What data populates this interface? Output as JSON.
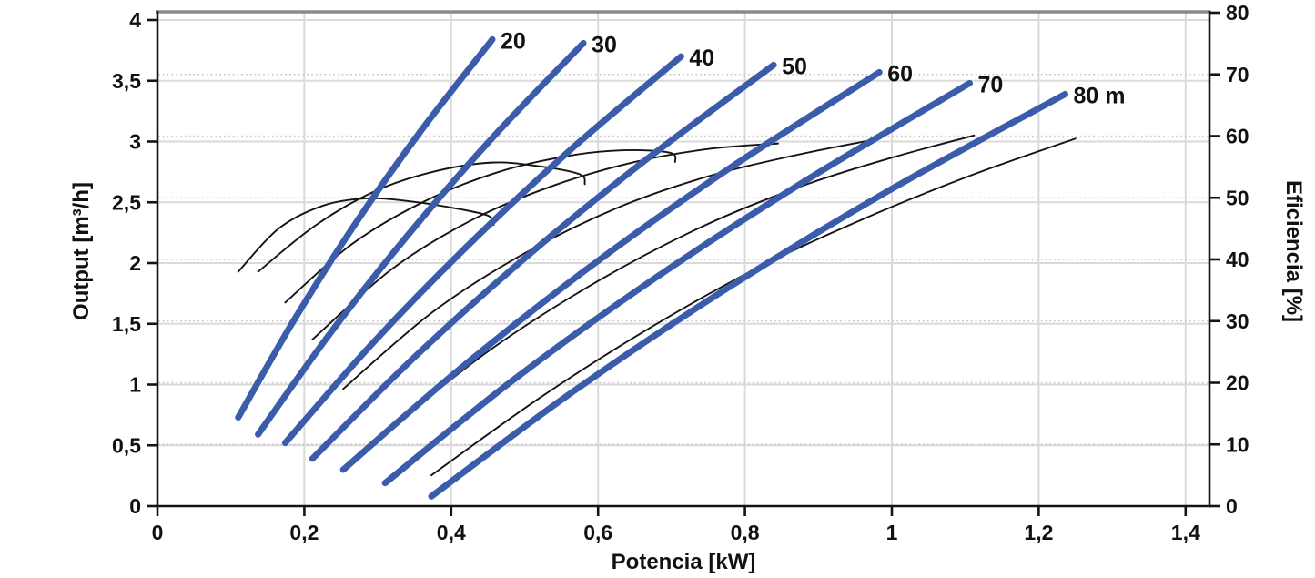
{
  "chart_data": {
    "type": "line",
    "title": "",
    "xlabel": "Potencia [kW]",
    "ylabel_left": "Output [m³/h]",
    "ylabel_right": "Eficiencia [%]",
    "x_axis": {
      "min": 0,
      "max": 1.43,
      "gridlines": true,
      "ticks": [
        {
          "v": 0,
          "label": "0"
        },
        {
          "v": 0.2,
          "label": "0,2"
        },
        {
          "v": 0.4,
          "label": "0,4"
        },
        {
          "v": 0.6,
          "label": "0,6"
        },
        {
          "v": 0.8,
          "label": "0,8"
        },
        {
          "v": 1,
          "label": "1"
        },
        {
          "v": 1.2,
          "label": "1,2"
        },
        {
          "v": 1.4,
          "label": "1,4"
        }
      ]
    },
    "y_axis_left": {
      "min": 0,
      "max": 4.07,
      "gridlines": "solid",
      "ticks": [
        {
          "v": 0,
          "label": "0"
        },
        {
          "v": 0.5,
          "label": "0,5"
        },
        {
          "v": 1,
          "label": "1"
        },
        {
          "v": 1.5,
          "label": "1,5"
        },
        {
          "v": 2,
          "label": "2"
        },
        {
          "v": 2.5,
          "label": "2,5"
        },
        {
          "v": 3,
          "label": "3"
        },
        {
          "v": 3.5,
          "label": "3,5"
        },
        {
          "v": 4,
          "label": "4"
        }
      ]
    },
    "y_axis_right": {
      "min": 0,
      "max": 80.2,
      "gridlines": "dotted",
      "ticks": [
        {
          "v": 0,
          "label": "0"
        },
        {
          "v": 10,
          "label": "10"
        },
        {
          "v": 20,
          "label": "20"
        },
        {
          "v": 30,
          "label": "30"
        },
        {
          "v": 40,
          "label": "40"
        },
        {
          "v": 50,
          "label": "50"
        },
        {
          "v": 60,
          "label": "60"
        },
        {
          "v": 70,
          "label": "70"
        },
        {
          "v": 80,
          "label": "80"
        }
      ]
    },
    "colors": {
      "output_curve": "#3B5CAA",
      "efficiency_curve": "#141414",
      "grid_solid": "#DADADA",
      "grid_dotted": "#C9C9C9",
      "frame_top": "#8A8A8A",
      "axis": "#141414",
      "text": "#111111"
    },
    "output_curves": [
      {
        "head": "20",
        "label": "20",
        "axis": "left",
        "units": "kW vs m³/h",
        "points": [
          [
            0.11,
            0.73
          ],
          [
            0.186,
            1.53
          ],
          [
            0.269,
            2.32
          ],
          [
            0.359,
            3.09
          ],
          [
            0.456,
            3.84
          ]
        ]
      },
      {
        "head": "30",
        "label": "30",
        "axis": "left",
        "units": "kW vs m³/h",
        "points": [
          [
            0.137,
            0.59
          ],
          [
            0.235,
            1.42
          ],
          [
            0.341,
            2.23
          ],
          [
            0.456,
            3.03
          ],
          [
            0.58,
            3.81
          ]
        ]
      },
      {
        "head": "40",
        "label": "40",
        "axis": "left",
        "units": "kW vs m³/h",
        "points": [
          [
            0.174,
            0.52
          ],
          [
            0.293,
            1.34
          ],
          [
            0.422,
            2.14
          ],
          [
            0.562,
            2.93
          ],
          [
            0.713,
            3.7
          ]
        ]
      },
      {
        "head": "50",
        "label": "50",
        "axis": "left",
        "units": "kW vs m³/h",
        "points": [
          [
            0.211,
            0.39
          ],
          [
            0.349,
            1.22
          ],
          [
            0.5,
            2.04
          ],
          [
            0.663,
            2.84
          ],
          [
            0.839,
            3.63
          ]
        ]
      },
      {
        "head": "60",
        "label": "60",
        "axis": "left",
        "units": "kW vs m³/h",
        "points": [
          [
            0.253,
            0.3
          ],
          [
            0.414,
            1.14
          ],
          [
            0.589,
            1.97
          ],
          [
            0.779,
            2.78
          ],
          [
            0.983,
            3.57
          ]
        ]
      },
      {
        "head": "70",
        "label": "70",
        "axis": "left",
        "units": "kW vs m³/h",
        "points": [
          [
            0.31,
            0.19
          ],
          [
            0.485,
            1.04
          ],
          [
            0.676,
            1.87
          ],
          [
            0.883,
            2.68
          ],
          [
            1.106,
            3.48
          ]
        ]
      },
      {
        "head": "80",
        "label": "80 m",
        "axis": "left",
        "units": "kW vs m³/h",
        "points": [
          [
            0.373,
            0.08
          ],
          [
            0.563,
            0.93
          ],
          [
            0.77,
            1.77
          ],
          [
            0.994,
            2.59
          ],
          [
            1.236,
            3.39
          ]
        ]
      }
    ],
    "efficiency_curves": [
      {
        "head": "20",
        "axis": "right",
        "points": [
          [
            0.11,
            38
          ],
          [
            0.165,
            45.0
          ],
          [
            0.225,
            48.7
          ],
          [
            0.285,
            49.9
          ],
          [
            0.345,
            49.4
          ],
          [
            0.405,
            48.3
          ],
          [
            0.45,
            47.1
          ],
          [
            0.458,
            45.6
          ]
        ]
      },
      {
        "head": "30",
        "axis": "right",
        "points": [
          [
            0.137,
            38
          ],
          [
            0.215,
            45.5
          ],
          [
            0.295,
            51.0
          ],
          [
            0.375,
            54.2
          ],
          [
            0.455,
            55.7
          ],
          [
            0.52,
            55.1
          ],
          [
            0.575,
            53.8
          ],
          [
            0.582,
            52.2
          ]
        ]
      },
      {
        "head": "40",
        "axis": "right",
        "points": [
          [
            0.174,
            33
          ],
          [
            0.265,
            42.5
          ],
          [
            0.365,
            49.5
          ],
          [
            0.465,
            54.2
          ],
          [
            0.56,
            56.8
          ],
          [
            0.635,
            57.7
          ],
          [
            0.698,
            57.3
          ],
          [
            0.705,
            55.8
          ]
        ]
      },
      {
        "head": "50",
        "axis": "right",
        "points": [
          [
            0.211,
            27
          ],
          [
            0.32,
            38.5
          ],
          [
            0.43,
            46.5
          ],
          [
            0.54,
            52.0
          ],
          [
            0.65,
            55.8
          ],
          [
            0.75,
            57.9
          ],
          [
            0.845,
            58.8
          ]
        ]
      },
      {
        "head": "60",
        "axis": "right",
        "points": [
          [
            0.253,
            19
          ],
          [
            0.375,
            31.5
          ],
          [
            0.5,
            41.0
          ],
          [
            0.625,
            48.3
          ],
          [
            0.745,
            53.3
          ],
          [
            0.865,
            56.8
          ],
          [
            0.984,
            59.6
          ]
        ]
      },
      {
        "head": "70",
        "axis": "right",
        "points": [
          [
            0.31,
            12
          ],
          [
            0.455,
            25.5
          ],
          [
            0.6,
            36.5
          ],
          [
            0.745,
            45.5
          ],
          [
            0.88,
            52.0
          ],
          [
            1.0,
            56.5
          ],
          [
            1.112,
            60.1
          ]
        ]
      },
      {
        "head": "80",
        "axis": "right",
        "points": [
          [
            0.373,
            5
          ],
          [
            0.52,
            17.5
          ],
          [
            0.665,
            28.5
          ],
          [
            0.815,
            38.5
          ],
          [
            0.96,
            46.5
          ],
          [
            1.105,
            53.5
          ],
          [
            1.25,
            59.6
          ]
        ]
      }
    ]
  }
}
